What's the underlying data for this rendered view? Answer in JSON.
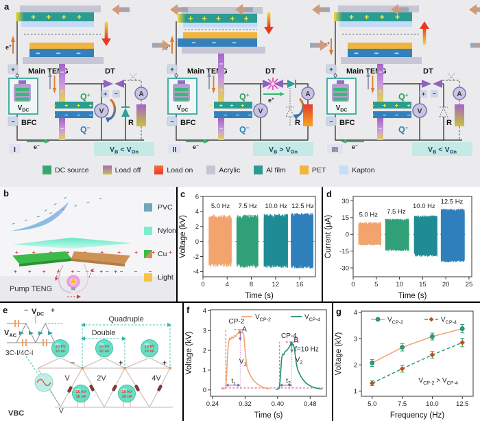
{
  "panel_labels": {
    "a": "a",
    "b": "b",
    "c": "c",
    "d": "d",
    "e": "e",
    "f": "f",
    "g": "g"
  },
  "panel_a": {
    "shared": {
      "main_teng": "Main TENG",
      "dt": "DT",
      "bfc": "BFC",
      "voltmeter": "V",
      "ammeter": "A",
      "resistor": "R",
      "q": "Q",
      "sup_plus": "+",
      "sup_minus": "−",
      "v": "V",
      "dc_sub": "DC",
      "e": "e",
      "plus": "+",
      "minus": "−",
      "stack_plus_marks": "+ + + +",
      "stack_plus_marks5": "+ + + + +",
      "stack_minus_marks": "− − −",
      "cap_plus_marks": "+ + + +",
      "cap_plus_marks5": "+ + + + +",
      "cap_minus_marks": "− − − −",
      "badge_vb": "V",
      "badge_b_sub": "B",
      "badge_von": "V",
      "badge_on_sub": "On"
    },
    "units": [
      {
        "numeral": "I",
        "badge_op": "<"
      },
      {
        "numeral": "II",
        "badge_op": ">"
      },
      {
        "numeral": "III",
        "badge_op": "<"
      }
    ],
    "legend": [
      {
        "label": "DC source",
        "colors": [
          "#3aa66f"
        ]
      },
      {
        "label": "Load off",
        "colors": [
          "#a565c8",
          "#c8c23e"
        ]
      },
      {
        "label": "Load on",
        "colors": [
          "#f3703f",
          "#e8392a"
        ]
      },
      {
        "label": "Acrylic",
        "colors": [
          "#c6c5d4"
        ]
      },
      {
        "label": "Al film",
        "colors": [
          "#2a9a92"
        ]
      },
      {
        "label": "PET",
        "colors": [
          "#f2b53d"
        ]
      },
      {
        "label": "Kapton",
        "colors": [
          "#c7dcf8"
        ]
      }
    ]
  },
  "panel_b": {
    "title": "Pump TENG",
    "pvc_minus_row": "− − − − − − − −",
    "tip_minus_row": "− − −",
    "nylon_plus_row": "+ + + + + + + + + +",
    "cu_plus_row": "+ + + + + + + +",
    "cu_minus_row": "− − − − − −",
    "legend": [
      {
        "label": "PVC",
        "colors": [
          "#6fa8bc"
        ]
      },
      {
        "label": "Nylon",
        "colors": [
          "#7deccb"
        ]
      },
      {
        "label": "Cu",
        "colors": [
          "#3dbb4a",
          "#cd9356"
        ]
      },
      {
        "label": "Light",
        "colors": [
          "#f5c54a"
        ]
      }
    ]
  },
  "panel_e": {
    "vac": "V",
    "ac_sub": "AC",
    "vdc": "V",
    "dc_sub": "DC",
    "minus": "−",
    "plus": "+",
    "inset_label": "3C-I/4C-I",
    "quadruple": "Quadruple",
    "double": "Double",
    "node_signs": [
      "−",
      "+",
      "+"
    ],
    "taps": [
      "V",
      "2V",
      "4V"
    ],
    "cap_line1": "10 kV",
    "cap_line2": "10 nF",
    "source_v": "V",
    "vbc": "VBC"
  },
  "chart_data": [
    {
      "id": "c",
      "type": "bar-burst-oscillation",
      "xlabel": "Time (s)",
      "ylabel": "Voltage (kV)",
      "xlim": [
        0,
        18.6
      ],
      "ylim": [
        -4.7,
        6
      ],
      "x_ticks": [
        {
          "v": 0,
          "l": "0"
        },
        {
          "v": 4,
          "l": "4"
        },
        {
          "v": 8,
          "l": "8"
        },
        {
          "v": 12,
          "l": "12"
        },
        {
          "v": 16,
          "l": "16"
        }
      ],
      "y_ticks": [
        {
          "v": -4,
          "l": "-4"
        },
        {
          "v": -2,
          "l": "-2"
        },
        {
          "v": 0,
          "l": "0"
        },
        {
          "v": 2,
          "l": "2"
        },
        {
          "v": 4,
          "l": "4"
        },
        {
          "v": 6,
          "l": "6"
        }
      ],
      "bursts": [
        {
          "label": "5.0 Hz",
          "freq": 5.0,
          "t_start": 1.0,
          "t_end": 4.7,
          "amp_pos": 3.6,
          "amp_neg": -3.4,
          "color": "#F2A36E",
          "label_x": 2.9,
          "label_y": 4.45
        },
        {
          "label": "7.5 Hz",
          "freq": 7.5,
          "t_start": 5.6,
          "t_end": 9.1,
          "amp_pos": 3.6,
          "amp_neg": -3.5,
          "color": "#2FA077",
          "label_x": 7.4,
          "label_y": 4.45
        },
        {
          "label": "10.0 Hz",
          "freq": 10.0,
          "t_start": 10.1,
          "t_end": 14.0,
          "amp_pos": 3.7,
          "amp_neg": -3.5,
          "color": "#1F8B95",
          "label_x": 12.1,
          "label_y": 4.45
        },
        {
          "label": "12.5 Hz",
          "freq": 12.5,
          "t_start": 14.6,
          "t_end": 18.2,
          "amp_pos": 3.8,
          "amp_neg": -3.6,
          "color": "#2E7FBC",
          "label_x": 16.5,
          "label_y": 4.45
        }
      ]
    },
    {
      "id": "d",
      "type": "bar-burst-oscillation",
      "xlabel": "Time (s)",
      "ylabel": "Current (μA)",
      "xlim": [
        0,
        25.6
      ],
      "ylim": [
        -38,
        34
      ],
      "x_ticks": [
        {
          "v": 0,
          "l": "0"
        },
        {
          "v": 5,
          "l": "5"
        },
        {
          "v": 10,
          "l": "10"
        },
        {
          "v": 15,
          "l": "15"
        },
        {
          "v": 20,
          "l": "20"
        },
        {
          "v": 25,
          "l": "25"
        }
      ],
      "y_ticks": [
        {
          "v": -30,
          "l": "-30"
        },
        {
          "v": -15,
          "l": "-15"
        },
        {
          "v": 0,
          "l": "0"
        },
        {
          "v": 15,
          "l": "15"
        },
        {
          "v": 30,
          "l": "30"
        }
      ],
      "bursts": [
        {
          "label": "5.0 Hz",
          "freq": 5.0,
          "t_start": 1.2,
          "t_end": 6.0,
          "amp_pos": 11,
          "amp_neg": -10,
          "color": "#F2A36E",
          "label_x": 3.3,
          "label_y": 16
        },
        {
          "label": "7.5 Hz",
          "freq": 7.5,
          "t_start": 7.0,
          "t_end": 12.0,
          "amp_pos": 14,
          "amp_neg": -15,
          "color": "#2FA077",
          "label_x": 9.3,
          "label_y": 18.5
        },
        {
          "label": "10.0 Hz",
          "freq": 10.0,
          "t_start": 13.2,
          "t_end": 18.1,
          "amp_pos": 17,
          "amp_neg": -20,
          "color": "#1F8B95",
          "label_x": 15.3,
          "label_y": 23.5
        },
        {
          "label": "12.5 Hz",
          "freq": 12.5,
          "t_start": 19.0,
          "t_end": 24.0,
          "amp_pos": 23,
          "amp_neg": -25,
          "color": "#2E7FBC",
          "label_x": 21.3,
          "label_y": 27.5
        }
      ]
    },
    {
      "id": "f",
      "type": "line",
      "xlabel": "Time (s)",
      "ylabel": "Voltage (kV)",
      "xlim": [
        0.235,
        0.52
      ],
      "ylim": [
        -0.32,
        4.05
      ],
      "x_ticks": [
        {
          "v": 0.24,
          "l": "0.24"
        },
        {
          "v": 0.32,
          "l": "0.32"
        },
        {
          "v": 0.4,
          "l": "0.40"
        },
        {
          "v": 0.48,
          "l": "0.48"
        }
      ],
      "y_ticks": [
        {
          "v": 0,
          "l": "0"
        },
        {
          "v": 1,
          "l": "1"
        },
        {
          "v": 2,
          "l": "2"
        },
        {
          "v": 3,
          "l": "3"
        },
        {
          "v": 4,
          "l": "4"
        }
      ],
      "legend": [
        {
          "main": "V",
          "sub": "CP-2",
          "color": "#F2A36E"
        },
        {
          "main": "V",
          "sub": "CP-4",
          "color": "#1F9468"
        }
      ],
      "series": [
        {
          "name": "VCP-2",
          "color": "#F2A36E",
          "points": [
            [
              0.262,
              0.05
            ],
            [
              0.268,
              0.06
            ],
            [
              0.272,
              0.1
            ],
            [
              0.2745,
              0.6
            ],
            [
              0.2765,
              1.6
            ],
            [
              0.279,
              2.35
            ],
            [
              0.282,
              2.62
            ],
            [
              0.285,
              2.55
            ],
            [
              0.288,
              2.68
            ],
            [
              0.291,
              2.6
            ],
            [
              0.294,
              2.75
            ],
            [
              0.297,
              2.7
            ],
            [
              0.3,
              2.82
            ],
            [
              0.303,
              2.86
            ],
            [
              0.306,
              3.02
            ],
            [
              0.308,
              3.05
            ],
            [
              0.31,
              2.92
            ],
            [
              0.3125,
              2.88
            ],
            [
              0.315,
              2.9
            ],
            [
              0.317,
              2.75
            ],
            [
              0.319,
              2.3
            ],
            [
              0.321,
              1.75
            ],
            [
              0.324,
              1.25
            ],
            [
              0.327,
              1.0
            ],
            [
              0.331,
              0.82
            ],
            [
              0.336,
              0.62
            ],
            [
              0.342,
              0.45
            ],
            [
              0.35,
              0.3
            ],
            [
              0.358,
              0.2
            ],
            [
              0.366,
              0.12
            ],
            [
              0.374,
              0.07
            ],
            [
              0.38,
              0.05
            ]
          ]
        },
        {
          "name": "VCP-4",
          "color": "#1F9468",
          "points": [
            [
              0.395,
              0.03
            ],
            [
              0.401,
              0.04
            ],
            [
              0.404,
              0.1
            ],
            [
              0.406,
              0.45
            ],
            [
              0.408,
              1.05
            ],
            [
              0.41,
              1.6
            ],
            [
              0.4125,
              1.82
            ],
            [
              0.415,
              1.78
            ],
            [
              0.418,
              1.92
            ],
            [
              0.421,
              1.98
            ],
            [
              0.424,
              2.02
            ],
            [
              0.427,
              2.12
            ],
            [
              0.43,
              2.2
            ],
            [
              0.433,
              2.38
            ],
            [
              0.435,
              2.42
            ],
            [
              0.437,
              2.3
            ],
            [
              0.439,
              2.28
            ],
            [
              0.441,
              2.1
            ],
            [
              0.4435,
              1.75
            ],
            [
              0.446,
              1.35
            ],
            [
              0.449,
              1.05
            ],
            [
              0.453,
              0.85
            ],
            [
              0.458,
              0.65
            ],
            [
              0.464,
              0.48
            ],
            [
              0.471,
              0.33
            ],
            [
              0.479,
              0.22
            ],
            [
              0.487,
              0.14
            ],
            [
              0.495,
              0.09
            ],
            [
              0.503,
              0.06
            ],
            [
              0.51,
              0.05
            ]
          ]
        }
      ],
      "annotations": [
        {
          "segments": [
            {
              "t": "CP-2"
            }
          ],
          "x": 0.299,
          "y": 3.35
        },
        {
          "segments": [
            {
              "t": "A"
            }
          ],
          "x": 0.3185,
          "y": 2.95
        },
        {
          "segments": [
            {
              "t": "CP-4"
            }
          ],
          "x": 0.428,
          "y": 2.62
        },
        {
          "segments": [
            {
              "t": "B"
            }
          ],
          "x": 0.4455,
          "y": 2.42
        },
        {
          "segments": [
            {
              "t": "f=10 Hz"
            }
          ],
          "x": 0.472,
          "y": 1.95
        },
        {
          "segments": [
            {
              "t": "V"
            },
            {
              "t": "1",
              "sub": true
            }
          ],
          "x": 0.3145,
          "y": 1.32
        },
        {
          "segments": [
            {
              "t": "V"
            },
            {
              "t": "2",
              "sub": true
            }
          ],
          "x": 0.4525,
          "y": 1.42
        },
        {
          "segments": [
            {
              "t": "t"
            },
            {
              "t": "1",
              "sub": true
            }
          ],
          "x": 0.292,
          "y": 0.34
        },
        {
          "segments": [
            {
              "t": "t"
            },
            {
              "t": "2",
              "sub": true
            }
          ],
          "x": 0.4265,
          "y": 0.36
        }
      ],
      "guides": {
        "color": "#E0218A",
        "arrow_color": "#7b5ea7",
        "baseline_y": 0.1,
        "baseline_x": [
          0.262,
          0.512
        ],
        "v_dashed": [
          {
            "x": 0.2725,
            "y1": 3.05
          },
          {
            "x": 0.405,
            "y1": 2.42
          }
        ],
        "v_dotted": [
          {
            "x": 0.308,
            "y1": 3.05
          },
          {
            "x": 0.435,
            "y1": 2.42
          }
        ],
        "h_dashed": [
          {
            "y": 3.05,
            "x0": 0.293,
            "x1": 0.322
          },
          {
            "y": 2.42,
            "x0": 0.42,
            "x1": 0.452
          }
        ],
        "t_arrows": [
          {
            "x0": 0.2725,
            "x1": 0.308,
            "y": 0.24
          },
          {
            "x0": 0.405,
            "x1": 0.435,
            "y": 0.24
          }
        ],
        "v_arrows": [
          {
            "x": 0.308,
            "y0": 2.5,
            "y1": 3.0
          },
          {
            "x": 0.435,
            "y0": 1.9,
            "y1": 2.38
          }
        ]
      }
    },
    {
      "id": "g",
      "type": "scatter-line",
      "xlabel": "Frequency (Hz)",
      "ylabel": "Voltage (kV)",
      "xlim": [
        4.1,
        13.4
      ],
      "ylim": [
        0.8,
        4.05
      ],
      "x_ticks": [
        {
          "v": 5.0,
          "l": "5.0"
        },
        {
          "v": 7.5,
          "l": "7.5"
        },
        {
          "v": 10.0,
          "l": "10.0"
        },
        {
          "v": 12.5,
          "l": "12.5"
        }
      ],
      "y_ticks": [
        {
          "v": 1,
          "l": "1"
        },
        {
          "v": 2,
          "l": "2"
        },
        {
          "v": 3,
          "l": "3"
        },
        {
          "v": 4,
          "l": "4"
        }
      ],
      "legend": [
        {
          "main": "V",
          "sub": "CP-2",
          "marker": "circle",
          "marker_color": "#2E9E77",
          "line_color": "#F2A36E",
          "dashed": false
        },
        {
          "main": "V",
          "sub": "CP-4",
          "marker": "diamond",
          "marker_color": "#B5541C",
          "line_color": "#2E9E77",
          "dashed": true
        }
      ],
      "series": [
        {
          "name": "VCP-2",
          "x": [
            5.0,
            7.5,
            10.0,
            12.5
          ],
          "y": [
            2.07,
            2.67,
            3.08,
            3.38
          ],
          "err": [
            0.13,
            0.14,
            0.13,
            0.16
          ],
          "line_color": "#F2A36E",
          "dashed": false,
          "marker": "circle",
          "marker_color": "#2E9E77",
          "err_color": "#2E9E77"
        },
        {
          "name": "VCP-4",
          "x": [
            5.0,
            7.5,
            10.0,
            12.5
          ],
          "y": [
            1.3,
            1.85,
            2.38,
            2.85
          ],
          "err": [
            0.09,
            0.13,
            0.13,
            0.16
          ],
          "line_color": "#2E9E77",
          "dashed": true,
          "marker": "diamond",
          "marker_color": "#B5541C",
          "err_color": "#2E9E77"
        }
      ],
      "annotation": {
        "segments": [
          {
            "t": "V"
          },
          {
            "t": "CP-2",
            "sub": true
          },
          {
            "t": " > V"
          },
          {
            "t": "CP-4",
            "sub": true
          }
        ],
        "x": 10.5,
        "y": 1.32
      }
    }
  ]
}
